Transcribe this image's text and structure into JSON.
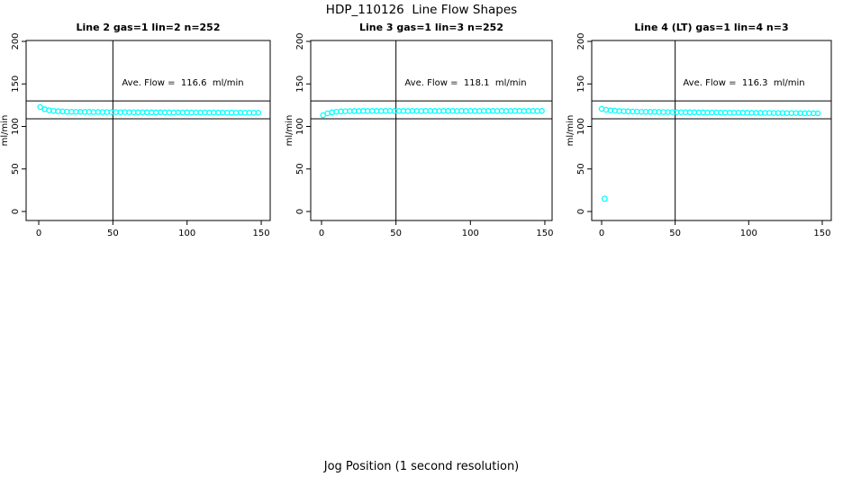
{
  "page": {
    "main_title": "HDP_110126  Line Flow Shapes",
    "xlabel": "Jog Position (1 second resolution)",
    "background": "#ffffff"
  },
  "colors": {
    "points": "#00ffff",
    "axis": "#000000",
    "text": "#000000"
  },
  "chart_data": [
    {
      "type": "scatter",
      "title": "Line 2 gas=1 lin=2 n=252",
      "annotation": "Ave. Flow =  116.6  ml/min",
      "ave_flow_ml_min": 116.6,
      "n": 252,
      "ylabel": "ml/min",
      "x_ticks": [
        0,
        50,
        100,
        150
      ],
      "y_ticks": [
        0,
        50,
        100,
        150,
        200
      ],
      "xlim": [
        0,
        150
      ],
      "ylim": [
        0,
        200
      ],
      "vline_x": 50,
      "hlines": [
        130,
        109
      ],
      "x_start": 1,
      "x_step": 3,
      "y": [
        122.8,
        120.2,
        119.0,
        118.3,
        117.9,
        117.6,
        117.4,
        117.3,
        117.2,
        117.1,
        117.0,
        117.1,
        116.9,
        117.0,
        116.8,
        116.9,
        116.8,
        116.8,
        116.7,
        116.8,
        116.7,
        116.7,
        116.6,
        116.7,
        116.6,
        116.6,
        116.5,
        116.6,
        116.5,
        116.5,
        116.4,
        116.5,
        116.4,
        116.5,
        116.4,
        116.4,
        116.3,
        116.4,
        116.3,
        116.4,
        116.3,
        116.3,
        116.2,
        116.3,
        116.2,
        116.3,
        116.2,
        116.2,
        116.2,
        116.2
      ],
      "outliers": []
    },
    {
      "type": "scatter",
      "title": "Line 3 gas=1 lin=3 n=252",
      "annotation": "Ave. Flow =  118.1  ml/min",
      "ave_flow_ml_min": 118.1,
      "n": 252,
      "ylabel": "ml/min",
      "x_ticks": [
        0,
        50,
        100,
        150
      ],
      "y_ticks": [
        0,
        50,
        100,
        150,
        200
      ],
      "xlim": [
        0,
        150
      ],
      "ylim": [
        0,
        200
      ],
      "vline_x": 50,
      "hlines": [
        130,
        109
      ],
      "x_start": 1,
      "x_step": 3,
      "y": [
        113.2,
        115.3,
        116.6,
        117.3,
        117.7,
        117.9,
        118.0,
        118.1,
        118.1,
        118.2,
        118.1,
        118.2,
        118.2,
        118.1,
        118.2,
        118.3,
        118.1,
        118.2,
        118.2,
        118.1,
        118.3,
        118.2,
        118.1,
        118.2,
        118.3,
        118.2,
        118.1,
        118.2,
        118.2,
        118.3,
        118.1,
        118.2,
        118.1,
        118.3,
        118.2,
        118.1,
        118.2,
        118.2,
        118.3,
        118.1,
        118.2,
        118.1,
        118.2,
        118.3,
        118.2,
        118.1,
        118.2,
        118.2,
        118.1,
        118.2
      ],
      "outliers": []
    },
    {
      "type": "scatter",
      "title": "Line 4 (LT) gas=1 lin=4 n=3",
      "annotation": "Ave. Flow =  116.3  ml/min",
      "ave_flow_ml_min": 116.3,
      "n": 3,
      "ylabel": "ml/min",
      "x_ticks": [
        0,
        50,
        100,
        150
      ],
      "y_ticks": [
        0,
        50,
        100,
        150,
        200
      ],
      "xlim": [
        0,
        150
      ],
      "ylim": [
        0,
        200
      ],
      "vline_x": 50,
      "hlines": [
        130,
        109
      ],
      "x_start": 0,
      "x_step": 3,
      "y": [
        120.6,
        119.6,
        118.9,
        118.5,
        118.1,
        117.9,
        117.7,
        117.5,
        117.4,
        117.3,
        117.2,
        117.1,
        117.1,
        117.0,
        116.9,
        116.9,
        116.8,
        116.8,
        116.7,
        116.7,
        116.6,
        116.6,
        116.5,
        116.5,
        116.4,
        116.4,
        116.4,
        116.3,
        116.3,
        116.2,
        116.2,
        116.2,
        116.1,
        116.1,
        116.0,
        116.0,
        116.0,
        115.9,
        115.9,
        115.8,
        115.8,
        115.8,
        115.7,
        115.7,
        115.7,
        115.6,
        115.6,
        115.6,
        115.5,
        115.5
      ],
      "outliers": [
        [
          2,
          15
        ]
      ]
    }
  ]
}
